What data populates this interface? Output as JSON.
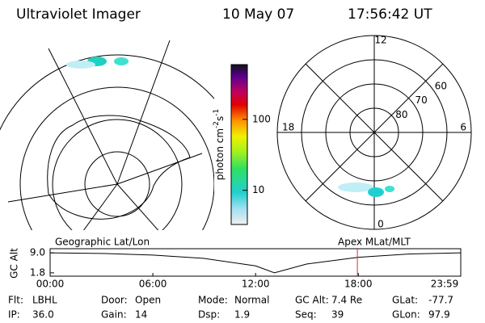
{
  "header": {
    "title": "Ultraviolet Imager",
    "date": "10 May 07",
    "time": "17:56:42 UT"
  },
  "colorbar": {
    "label": [
      "photon cm",
      "-2",
      "s",
      "-1"
    ],
    "lim": [
      3.3,
      590
    ],
    "ticks": [
      10,
      100
    ],
    "log": true
  },
  "left_map": {
    "caption": "Geographic Lat/Lon"
  },
  "polar_map": {
    "caption": "Apex MLat/MLT",
    "mlt_labels": [
      12,
      18,
      6,
      0
    ],
    "lat_labels": [
      60,
      70,
      80
    ],
    "lat_lim": [
      50,
      90
    ]
  },
  "altitude_plot": {
    "ylabel": "GC Alt",
    "ylim": [
      0.6,
      10.5
    ],
    "yticks": [
      {
        "value": 9.0,
        "label": "9.0"
      },
      {
        "value": 1.8,
        "label": "1.8"
      }
    ],
    "xlim": [
      0,
      23.983
    ],
    "xticks": [
      {
        "value": 0,
        "label": "00:00"
      },
      {
        "value": 6,
        "label": "06:00"
      },
      {
        "value": 12,
        "label": "12:00"
      },
      {
        "value": 18,
        "label": "18:00"
      },
      {
        "value": 23.983,
        "label": "23:59"
      }
    ],
    "x": [
      0,
      3,
      6,
      9,
      12,
      13.1,
      15,
      18,
      21,
      23.983
    ],
    "values": [
      9.0,
      8.8,
      8.2,
      7.0,
      4.3,
      1.8,
      5.0,
      7.4,
      8.6,
      9.0
    ],
    "current_time": 17.945,
    "current_color": "#e03030"
  },
  "footer": {
    "rows": [
      [
        [
          "Flt:",
          "LBHL"
        ],
        [
          "Door:",
          "Open"
        ],
        [
          "Mode:",
          "Normal"
        ],
        [
          "GC Alt:",
          "7.4 Re"
        ],
        [
          "GLat:",
          "-77.7"
        ]
      ],
      [
        [
          "IP:",
          "36.0"
        ],
        [
          "Gain:",
          "14"
        ],
        [
          "Dsp:",
          "1.9"
        ],
        [
          "Seq:",
          "39"
        ],
        [
          "GLon:",
          "97.9"
        ]
      ]
    ]
  }
}
